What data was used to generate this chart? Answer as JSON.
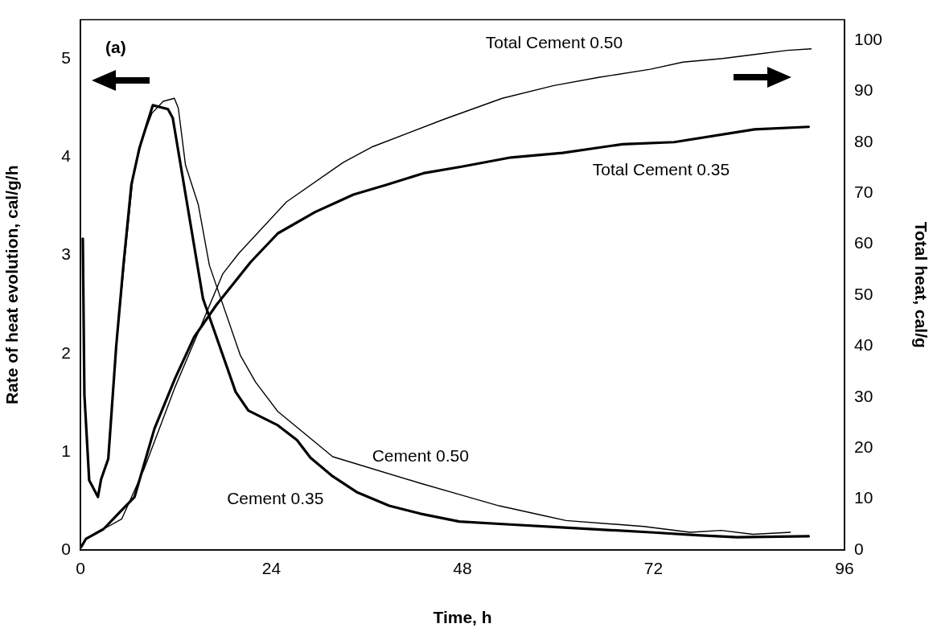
{
  "chart_data": {
    "type": "line",
    "xlabel": "Time, h",
    "ylabel": "Rate of heat evolution, cal/g/h",
    "y2label": "Total heat, cal/g",
    "annotations": [
      "(a)"
    ],
    "xlim": [
      0,
      96
    ],
    "xticks": [
      0,
      24,
      48,
      72,
      96
    ],
    "ylim": [
      0,
      5.4
    ],
    "yticks": [
      0,
      1,
      2,
      3,
      4,
      5
    ],
    "y2lim": [
      0,
      104
    ],
    "y2ticks": [
      0,
      10,
      20,
      30,
      40,
      50,
      60,
      70,
      80,
      90,
      100
    ],
    "grid": false,
    "legend": false,
    "marker": "none",
    "line_style": "solid",
    "series": [
      {
        "name": "Cement 0.35",
        "color": "#000000",
        "x": [
          0.3,
          0.5,
          1.1,
          2.2,
          2.6,
          3.5,
          4.5,
          5.4,
          6.4,
          7.4,
          9.1,
          11.0,
          11.6,
          15.4,
          19.5,
          21.1,
          24.8,
          27.2,
          28.9,
          31.7,
          34.7,
          38.8,
          42.7,
          47.6,
          53.9,
          60.4,
          71.6,
          77.5,
          82.5,
          91.5
        ],
        "values": [
          3.17,
          1.58,
          0.71,
          0.54,
          0.72,
          0.93,
          2.08,
          2.9,
          3.72,
          4.09,
          4.53,
          4.49,
          4.4,
          2.56,
          1.61,
          1.42,
          1.27,
          1.12,
          0.94,
          0.75,
          0.59,
          0.45,
          0.37,
          0.29,
          0.26,
          0.23,
          0.18,
          0.15,
          0.13,
          0.14
        ]
      },
      {
        "name": "Cement 0.50",
        "color": "#000000",
        "x": [
          0.3,
          0.5,
          1.1,
          2.2,
          2.6,
          3.5,
          4.5,
          5.6,
          6.6,
          7.8,
          9.0,
          10.4,
          11.8,
          12.3,
          13.2,
          14.8,
          16.2,
          20.1,
          22.0,
          24.8,
          31.7,
          42.7,
          47.4,
          52.6,
          58.2,
          61.0,
          70.8,
          76.6,
          80.5,
          84.5,
          89.2
        ],
        "values": [
          3.17,
          1.58,
          0.71,
          0.54,
          0.72,
          0.93,
          2.08,
          3.0,
          3.8,
          4.2,
          4.45,
          4.57,
          4.6,
          4.5,
          3.92,
          3.52,
          2.9,
          1.98,
          1.71,
          1.41,
          0.95,
          0.68,
          0.57,
          0.45,
          0.35,
          0.3,
          0.24,
          0.18,
          0.2,
          0.16,
          0.18
        ]
      },
      {
        "name": "Total Cement 0.35",
        "color": "#000000",
        "axis": "y2",
        "x": [
          0.1,
          0.7,
          2.9,
          5.0,
          6.8,
          9.3,
          11.9,
          14.3,
          17.1,
          21.4,
          24.8,
          29.5,
          34.3,
          38.4,
          43.1,
          47.9,
          54.1,
          60.6,
          68.1,
          74.6,
          84.7,
          91.5
        ],
        "values": [
          0.6,
          2.2,
          4.1,
          7.5,
          10.4,
          23.8,
          33.7,
          41.8,
          48.1,
          56.5,
          62.1,
          66.3,
          69.7,
          71.6,
          73.9,
          75.2,
          77.0,
          77.9,
          79.6,
          80.0,
          82.5,
          83.0
        ]
      },
      {
        "name": "Total Cement 0.50",
        "color": "#000000",
        "axis": "y2",
        "x": [
          0.1,
          0.7,
          2.9,
          5.2,
          8.0,
          11.9,
          14.1,
          17.9,
          19.9,
          25.9,
          33.0,
          36.7,
          45.7,
          53.0,
          59.5,
          65.1,
          71.6,
          75.7,
          80.7,
          84.7,
          88.8,
          91.8
        ],
        "values": [
          0.6,
          2.2,
          4.1,
          6.1,
          15.9,
          32.0,
          40.1,
          54.2,
          58.2,
          68.3,
          76.0,
          79.1,
          84.5,
          88.6,
          91.1,
          92.7,
          94.3,
          95.7,
          96.4,
          97.2,
          98.0,
          98.3
        ]
      }
    ]
  }
}
